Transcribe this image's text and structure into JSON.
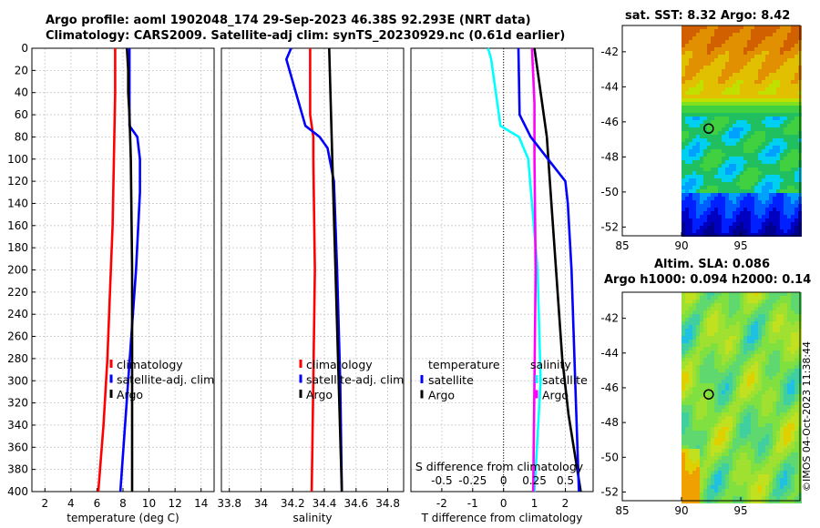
{
  "titles": {
    "line1": "Argo profile: aoml 1902048_174 29-Sep-2023 46.38S 92.293E (NRT data)",
    "line2": "Climatology: CARS2009. Satellite-adj clim: synTS_20230929.nc (0.61d earlier)",
    "sst": "sat. SST: 8.32 Argo: 8.42",
    "sla": "Altim. SLA: 0.086",
    "argo_h": "Argo h1000: 0.094 h2000: 0.14"
  },
  "credit": "©IMOS 04-Oct-2023 11:38:44",
  "colors": {
    "climatology": "#ff0000",
    "satellite": "#0000ff",
    "argo": "#000000",
    "satellite_t": "#00ffff",
    "satellite_s": "#ff00ff"
  },
  "chart_data": [
    {
      "id": "temperature",
      "type": "line",
      "xlabel": "temperature (deg C)",
      "ylabel": "",
      "xlim": [
        1,
        15
      ],
      "ylim": [
        400,
        0
      ],
      "xticks": [
        2,
        4,
        6,
        8,
        10,
        12,
        14
      ],
      "yticks": [
        0,
        20,
        40,
        60,
        80,
        100,
        120,
        140,
        160,
        180,
        200,
        220,
        240,
        260,
        280,
        300,
        320,
        340,
        360,
        380,
        400
      ],
      "grid": true,
      "legend": [
        "climatology",
        "satellite-adj. clim",
        "Argo"
      ],
      "legend_position": "right",
      "series": [
        {
          "name": "climatology",
          "color": "#ff0000",
          "depth": [
            0,
            40,
            100,
            160,
            220,
            280,
            340,
            400
          ],
          "values": [
            7.4,
            7.4,
            7.3,
            7.2,
            7.0,
            6.8,
            6.5,
            6.1
          ]
        },
        {
          "name": "satellite-adj. clim",
          "color": "#0000ff",
          "depth": [
            0,
            70,
            80,
            100,
            130,
            200,
            300,
            400
          ],
          "values": [
            8.5,
            8.5,
            9.1,
            9.3,
            9.3,
            9.0,
            8.4,
            7.8
          ]
        },
        {
          "name": "Argo",
          "color": "#000000",
          "depth": [
            0,
            20,
            40,
            60,
            100,
            200,
            300,
            400
          ],
          "values": [
            8.3,
            8.4,
            8.4,
            8.5,
            8.6,
            8.7,
            8.7,
            8.7
          ]
        }
      ]
    },
    {
      "id": "salinity",
      "type": "line",
      "xlabel": "salinity",
      "ylabel": "",
      "xlim": [
        33.75,
        34.9
      ],
      "ylim": [
        400,
        0
      ],
      "xticks": [
        33.8,
        34,
        34.2,
        34.4,
        34.6,
        34.8
      ],
      "xtick_labels": [
        "33.8",
        "34",
        "34.2",
        "34.4",
        "34.6",
        "34.8"
      ],
      "grid": true,
      "legend": [
        "climatology",
        "satellite-adj. clim",
        "Argo"
      ],
      "legend_position": "right",
      "series": [
        {
          "name": "climatology",
          "color": "#ff0000",
          "depth": [
            0,
            60,
            80,
            100,
            200,
            300,
            400
          ],
          "values": [
            34.31,
            34.31,
            34.33,
            34.33,
            34.34,
            34.33,
            34.32
          ]
        },
        {
          "name": "satellite-adj. clim",
          "color": "#0000ff",
          "depth": [
            0,
            10,
            70,
            80,
            90,
            120,
            200,
            300,
            400
          ],
          "values": [
            34.19,
            34.16,
            34.28,
            34.37,
            34.42,
            34.46,
            34.48,
            34.5,
            34.51
          ]
        },
        {
          "name": "Argo",
          "color": "#000000",
          "depth": [
            0,
            50,
            100,
            200,
            300,
            400
          ],
          "values": [
            34.43,
            34.44,
            34.45,
            34.47,
            34.49,
            34.51
          ]
        }
      ]
    },
    {
      "id": "difference",
      "type": "line",
      "xlabel": "T difference from climatology",
      "xlabel_top": "S difference from climatology",
      "xlim": [
        -3,
        2.9
      ],
      "ylim": [
        400,
        0
      ],
      "xticks": [
        -2,
        -1,
        0,
        1,
        2
      ],
      "xtick_labels": [
        "-2",
        "-1",
        "0",
        "1",
        "2"
      ],
      "s_xlim": [
        -0.75,
        0.725
      ],
      "s_ticks": [
        "-0.5",
        "-0.25",
        "0",
        "0.25",
        "0.5"
      ],
      "s_tick_values": [
        -0.5,
        -0.25,
        0,
        0.25,
        0.5
      ],
      "grid": true,
      "legend_t": {
        "heading": "temperature",
        "items": [
          "satellite",
          "Argo"
        ]
      },
      "legend_s": {
        "heading": "salinity",
        "items": [
          "satellite",
          "Argo"
        ]
      },
      "series": [
        {
          "name": "temperature satellite",
          "color": "#00ffff",
          "depth": [
            0,
            10,
            70,
            80,
            100,
            200,
            300,
            400
          ],
          "values": [
            -0.5,
            -0.4,
            -0.1,
            0.5,
            0.8,
            1.1,
            1.2,
            1.0
          ]
        },
        {
          "name": "salinity satellite",
          "color": "#ff00ff",
          "depth": [
            0,
            50,
            100,
            200,
            300,
            400
          ],
          "values": [
            0.23,
            0.25,
            0.25,
            0.26,
            0.25,
            0.24
          ]
        },
        {
          "name": "temperature Argo",
          "color": "#000000",
          "depth": [
            0,
            40,
            80,
            120,
            200,
            280,
            330,
            400
          ],
          "values": [
            1.0,
            1.2,
            1.4,
            1.5,
            1.7,
            1.9,
            2.1,
            2.5
          ]
        },
        {
          "name": "salinity Argo",
          "color": "#0000ff",
          "depth": [
            0,
            60,
            80,
            100,
            120,
            140,
            200,
            300,
            400
          ],
          "values": [
            0.12,
            0.13,
            0.22,
            0.36,
            0.5,
            0.52,
            0.55,
            0.58,
            0.61
          ]
        }
      ]
    },
    {
      "id": "sst-map",
      "type": "heatmap",
      "title": "sat. SST: 8.32 Argo: 8.42",
      "xlim": [
        85,
        100
      ],
      "ylim": [
        -52.5,
        -40.5
      ],
      "xticks": [
        85,
        90,
        95
      ],
      "yticks": [
        -42,
        -44,
        -46,
        -48,
        -50,
        -52
      ],
      "marker": {
        "lon": 92.293,
        "lat": -46.38
      }
    },
    {
      "id": "sla-map",
      "type": "heatmap",
      "title": "Altim. SLA: 0.086",
      "xlim": [
        85,
        100
      ],
      "ylim": [
        -52.5,
        -40.5
      ],
      "xticks": [
        85,
        90,
        95
      ],
      "yticks": [
        -42,
        -44,
        -46,
        -48,
        -50,
        -52
      ],
      "marker": {
        "lon": 92.293,
        "lat": -46.38
      }
    }
  ]
}
